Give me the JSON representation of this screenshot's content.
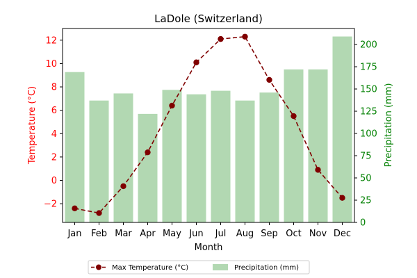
{
  "chart_data": {
    "type": "bar+line",
    "title": "LaDole (Switzerland)",
    "xlabel": "Month",
    "categories": [
      "Jan",
      "Feb",
      "Mar",
      "Apr",
      "May",
      "Jun",
      "Jul",
      "Aug",
      "Sep",
      "Oct",
      "Nov",
      "Dec"
    ],
    "left_axis": {
      "label": "Temperature (°C)",
      "ylim": [
        -3.6,
        13.0
      ],
      "ticks": [
        -2,
        0,
        2,
        4,
        6,
        8,
        10,
        12
      ],
      "color": "#ff0000"
    },
    "right_axis": {
      "label": "Precipitation (mm)",
      "ylim": [
        0,
        218
      ],
      "ticks": [
        0,
        25,
        50,
        75,
        100,
        125,
        150,
        175,
        200
      ],
      "color": "#008000"
    },
    "series": [
      {
        "name": "Max Temperature (°C)",
        "kind": "line",
        "axis": "left",
        "color": "#800000",
        "line_style": "dashed",
        "marker": "circle",
        "values": [
          -2.4,
          -2.8,
          -0.5,
          2.4,
          6.4,
          10.1,
          12.1,
          12.3,
          8.6,
          5.5,
          0.9,
          -1.5
        ]
      },
      {
        "name": "Precipitation (mm)",
        "kind": "bar",
        "axis": "right",
        "color": "#b2d8b2",
        "values": [
          169,
          137,
          145,
          122,
          149,
          144,
          148,
          137,
          146,
          172,
          172,
          209
        ]
      }
    ],
    "legend": {
      "placement": "bottom-center",
      "columns": 2
    },
    "grid": false
  }
}
